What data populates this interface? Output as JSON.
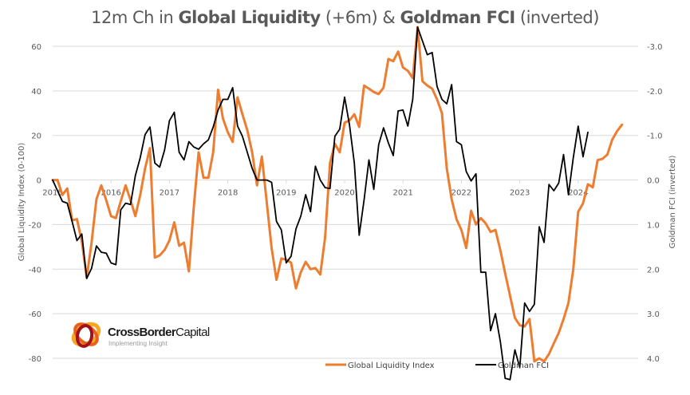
{
  "title": {
    "part1": "12m Ch in ",
    "part2": "Global Liquidity",
    "part3": " (+6m) & ",
    "part4": "Goldman FCI",
    "part5": " (inverted)"
  },
  "logo": {
    "name_bold": "CrossBorder",
    "name_light": "Capital",
    "tagline": "Implementing Insight"
  },
  "colors": {
    "gli": "#ED7D31",
    "fci": "#000000",
    "grid": "#D9D9D9",
    "text": "#595959"
  },
  "chart_data": {
    "type": "line",
    "title": "12m Ch in Global Liquidity (+6m) & Goldman FCI (inverted)",
    "xlabel": "",
    "ylabel": "Global Liquidity Index (0-100)",
    "y2label": "Goldman FCI (inverted)",
    "ylim": [
      -80,
      60
    ],
    "y2lim": [
      4.0,
      -3.0
    ],
    "y2_inverted": true,
    "yticks": [
      "60",
      "40",
      "20",
      "0",
      "-20",
      "-40",
      "-60",
      "-80"
    ],
    "y2ticks": [
      "-3.0",
      "-2.0",
      "-1.0",
      "0.0",
      "1.0",
      "2.0",
      "3.0",
      "4.0"
    ],
    "xticks": [
      "2015",
      "2016",
      "2017",
      "2018",
      "2019",
      "2020",
      "2021",
      "2022",
      "2023",
      "2024"
    ],
    "x_start": "2015-01",
    "x_frequency": "monthly",
    "grid": true,
    "legend_position": "bottom",
    "series": [
      {
        "name": "Global Liquidity Index",
        "axis": "left",
        "values": [
          0,
          0,
          -6.7,
          -3.8,
          -18.1,
          -17.6,
          -27.6,
          -43.8,
          -28.1,
          -8.6,
          -2.4,
          -9.0,
          -16.2,
          -17.1,
          -9.5,
          -2.4,
          -9.0,
          -16.2,
          -6.7,
          5.2,
          14.3,
          -34.8,
          -33.8,
          -31.4,
          -27.1,
          -19.0,
          -29.5,
          -28.1,
          -41.0,
          -12.4,
          12.4,
          1.0,
          1.0,
          12.4,
          40.5,
          27.6,
          21.4,
          17.1,
          37.1,
          29.5,
          22.4,
          12.4,
          -2.4,
          10.5,
          -10.0,
          -30.5,
          -44.8,
          -35.2,
          -35.7,
          -37.1,
          -48.6,
          -41.4,
          -36.7,
          -40.0,
          -39.5,
          -42.4,
          -25.7,
          7.6,
          16.2,
          12.4,
          25.7,
          26.7,
          29.5,
          23.8,
          42.4,
          41.0,
          39.5,
          38.6,
          41.4,
          54.3,
          53.3,
          57.6,
          50.5,
          49.0,
          45.7,
          68.6,
          44.3,
          42.4,
          41.0,
          36.2,
          30.0,
          5.2,
          -8.6,
          -17.6,
          -22.4,
          -30.5,
          -13.8,
          -20.0,
          -17.1,
          -19.5,
          -23.3,
          -22.4,
          -31.4,
          -41.9,
          -51.9,
          -61.9,
          -65.2,
          -65.7,
          -62.4,
          -81.4,
          -80.0,
          -81.4,
          -78.1,
          -73.3,
          -68.6,
          -62.4,
          -55.2,
          -40.0,
          -14.3,
          -10.5,
          -1.9,
          -3.3,
          8.9,
          9.5,
          11.4,
          18.1,
          21.9,
          24.8
        ]
      },
      {
        "name": "Goldman FCI",
        "axis": "right",
        "values": [
          0.0,
          0.24,
          0.48,
          0.52,
          0.93,
          1.36,
          1.21,
          2.21,
          1.98,
          1.48,
          1.62,
          1.64,
          1.86,
          1.9,
          0.67,
          0.52,
          0.55,
          -0.1,
          -0.5,
          -1.02,
          -1.19,
          -0.38,
          -0.29,
          -0.67,
          -1.33,
          -1.52,
          -0.62,
          -0.45,
          -0.86,
          -0.74,
          -0.69,
          -0.81,
          -0.9,
          -1.19,
          -1.57,
          -1.81,
          -1.81,
          -2.07,
          -1.21,
          -0.98,
          -0.62,
          -0.26,
          0.0,
          0.0,
          0.0,
          0.05,
          0.93,
          1.12,
          1.86,
          1.71,
          1.1,
          0.81,
          0.33,
          0.71,
          -0.31,
          0.0,
          0.17,
          0.19,
          -0.98,
          -1.14,
          -1.86,
          -1.24,
          -0.38,
          1.24,
          0.45,
          -0.45,
          0.21,
          -0.79,
          -1.17,
          -0.83,
          -0.55,
          -1.55,
          -1.57,
          -1.21,
          -1.81,
          -3.43,
          -3.12,
          -2.81,
          -2.86,
          -2.1,
          -1.81,
          -1.71,
          -2.14,
          -0.86,
          -0.79,
          -0.19,
          0.02,
          -0.14,
          2.07,
          2.07,
          3.38,
          3.0,
          3.62,
          4.45,
          4.48,
          3.81,
          4.21,
          2.76,
          2.95,
          2.79,
          1.05,
          1.4,
          0.1,
          0.24,
          0.07,
          -0.57,
          0.33,
          -0.5,
          -1.21,
          -0.52,
          -1.07
        ]
      }
    ]
  },
  "legend": {
    "items": [
      {
        "label": "Global Liquidity Index"
      },
      {
        "label": "Goldman FCI"
      }
    ]
  }
}
